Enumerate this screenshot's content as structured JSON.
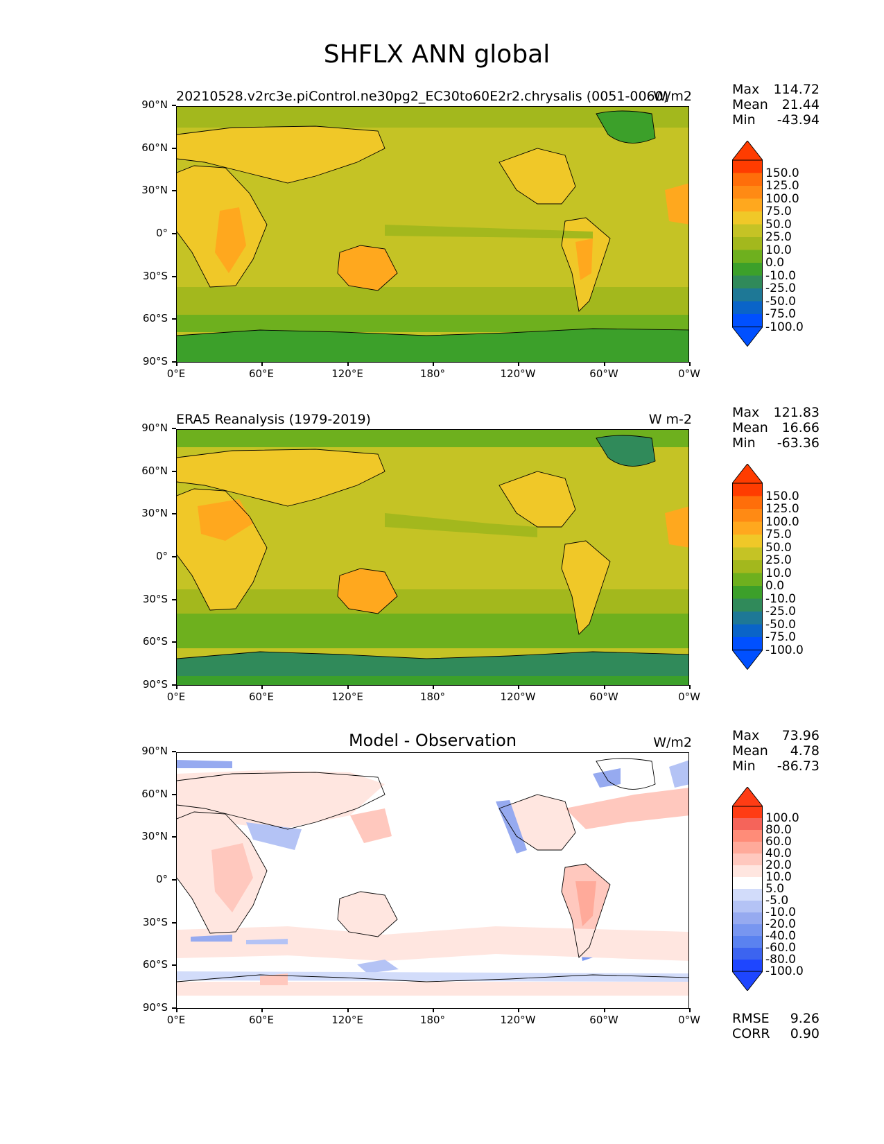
{
  "title": "SHFLX ANN global",
  "axes": {
    "lat_ticks": [
      "90°N",
      "60°N",
      "30°N",
      "0°",
      "30°S",
      "60°S",
      "90°S"
    ],
    "lon_ticks": [
      "0°E",
      "60°E",
      "120°E",
      "180°",
      "120°W",
      "60°W",
      "0°W"
    ]
  },
  "colors": {
    "abs_scale": [
      "#0050ff",
      "#0a64c8",
      "#1e7896",
      "#308a5a",
      "#3ca02a",
      "#6eb01e",
      "#a3b81d",
      "#c5c325",
      "#f0c828",
      "#ffa81e",
      "#ff8a14",
      "#ff6e0a",
      "#ff3c00"
    ],
    "diff_scale": [
      "#1e46ff",
      "#3c64f0",
      "#5a82f0",
      "#7896f0",
      "#96aaf0",
      "#b4c3f5",
      "#d2dcfa",
      "#ffffff",
      "#ffe6e0",
      "#ffc8be",
      "#ffaa9a",
      "#ff8c78",
      "#f5645a",
      "#ff3c14"
    ],
    "land_outline": "#000000"
  },
  "panels": [
    {
      "id": "model",
      "title_left": "20210528.v2rc3e.piControl.ne30pg2_EC30to60E2r2.chrysalis (0051-0060)",
      "title_center": "",
      "units": "W/m2",
      "stats": {
        "max_label": "Max",
        "max": "114.72",
        "mean_label": "Mean",
        "mean": "21.44",
        "min_label": "Min",
        "min": "-43.94"
      },
      "colorbar_labels": [
        "150.0",
        "125.0",
        "100.0",
        "75.0",
        "50.0",
        "25.0",
        "10.0",
        "0.0",
        "-10.0",
        "-25.0",
        "-50.0",
        "-75.0",
        "-100.0"
      ]
    },
    {
      "id": "obs",
      "title_left": "ERA5 Reanalysis (1979-2019)",
      "title_center": "",
      "units": "W m-2",
      "stats": {
        "max_label": "Max",
        "max": "121.83",
        "mean_label": "Mean",
        "mean": "16.66",
        "min_label": "Min",
        "min": "-63.36"
      },
      "colorbar_labels": [
        "150.0",
        "125.0",
        "100.0",
        "75.0",
        "50.0",
        "25.0",
        "10.0",
        "0.0",
        "-10.0",
        "-25.0",
        "-50.0",
        "-75.0",
        "-100.0"
      ]
    },
    {
      "id": "diff",
      "title_left": "",
      "title_center": "Model - Observation",
      "units": "W/m2",
      "stats": {
        "max_label": "Max",
        "max": "73.96",
        "mean_label": "Mean",
        "mean": "4.78",
        "min_label": "Min",
        "min": "-86.73"
      },
      "colorbar_labels": [
        "100.0",
        "80.0",
        "60.0",
        "40.0",
        "20.0",
        "10.0",
        "5.0",
        "-5.0",
        "-10.0",
        "-20.0",
        "-40.0",
        "-60.0",
        "-80.0",
        "-100.0"
      ],
      "metrics": {
        "rmse_label": "RMSE",
        "rmse": "9.26",
        "corr_label": "CORR",
        "corr": "0.90"
      }
    }
  ]
}
